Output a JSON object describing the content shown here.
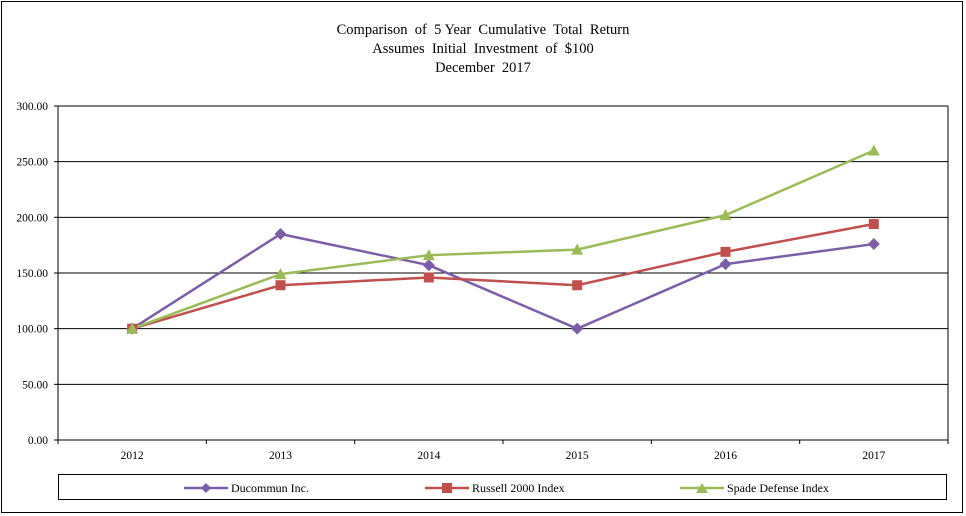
{
  "chart_data": {
    "type": "line",
    "title_lines": [
      "Comparison  of  5 Year  Cumulative  Total  Return",
      "Assumes  Initial  Investment  of  $100",
      "December  2017"
    ],
    "xlabel": "",
    "ylabel": "",
    "categories": [
      "2012",
      "2013",
      "2014",
      "2015",
      "2016",
      "2017"
    ],
    "ylim": [
      0,
      300
    ],
    "yticks": [
      0,
      50,
      100,
      150,
      200,
      250,
      300
    ],
    "ytick_labels": [
      "0.00",
      "50.00",
      "100.00",
      "150.00",
      "200.00",
      "250.00",
      "300.00"
    ],
    "grid": "horizontal",
    "legend_position": "bottom",
    "series": [
      {
        "name": "Ducommun Inc.",
        "color": "#7B5EA7",
        "marker": "diamond",
        "values": [
          100,
          185,
          157,
          100,
          158,
          176
        ]
      },
      {
        "name": "Russell 2000 Index",
        "color": "#C0504D",
        "marker": "square",
        "values": [
          100,
          139,
          146,
          139,
          169,
          194
        ]
      },
      {
        "name": "Spade Defense Index",
        "color": "#9BBB59",
        "marker": "triangle",
        "values": [
          100,
          149,
          166,
          171,
          202,
          260
        ]
      }
    ]
  }
}
